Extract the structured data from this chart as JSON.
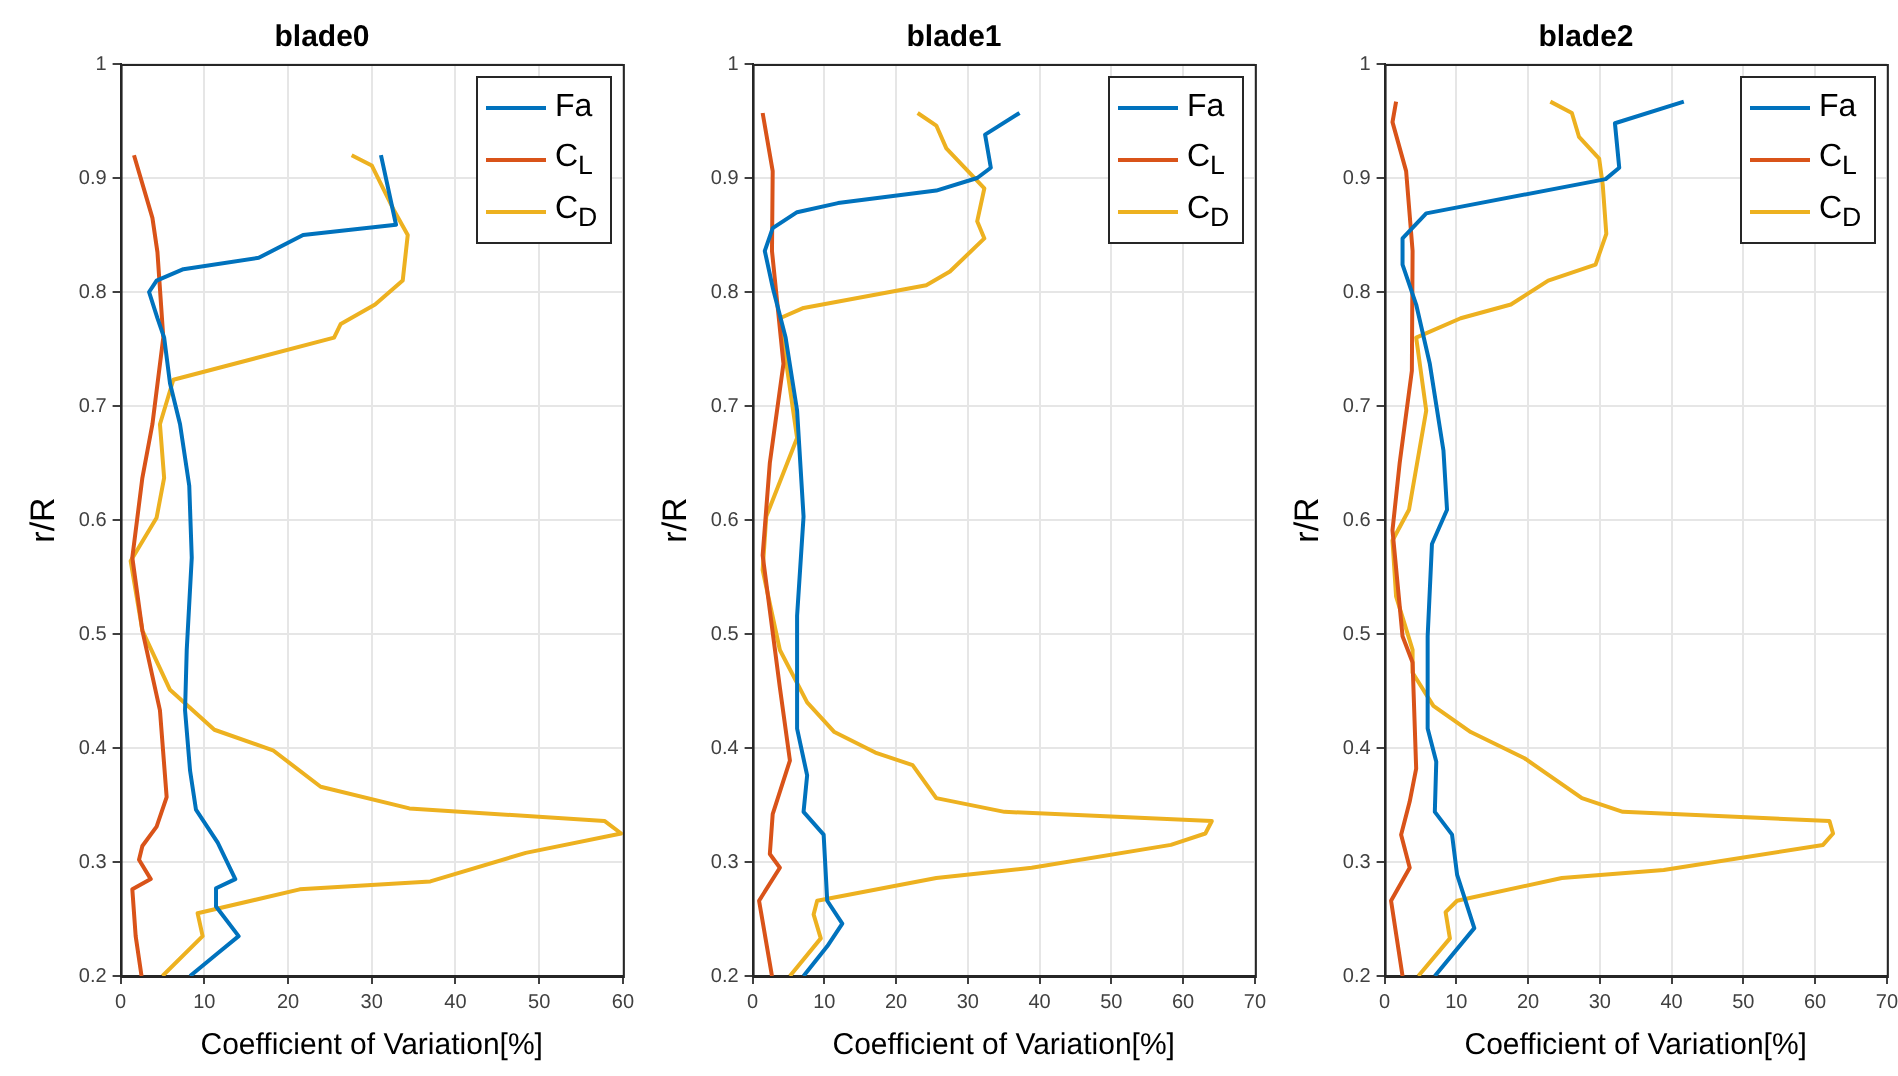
{
  "chart_data": [
    {
      "type": "line",
      "title": "blade0",
      "xlabel": "Coefficient of Variation[%]",
      "ylabel": "r/R",
      "xlim": [
        0,
        60
      ],
      "xticks": [
        0,
        10,
        20,
        30,
        40,
        50,
        60
      ],
      "ylim": [
        0.2,
        1
      ],
      "yticks": [
        0.2,
        0.3,
        0.4,
        0.5,
        0.6,
        0.7,
        0.8,
        0.9,
        1
      ],
      "grid": true,
      "legend": "top right",
      "line_style": "solid",
      "marker": "none",
      "series": [
        {
          "name": "Fa",
          "color": "#0072bd",
          "x": [
            31.1,
            32.9,
            21.8,
            16.5,
            7.5,
            4.3,
            3.4,
            4.4,
            5.2,
            5.9,
            7.1,
            8.2,
            8.5,
            7.9,
            7.7,
            8.3,
            9.0,
            11.6,
            13.7,
            11.4,
            11.4,
            14.1,
            11.6,
            8.3
          ],
          "values": [
            0.92,
            0.859,
            0.85,
            0.83,
            0.82,
            0.81,
            0.8,
            0.777,
            0.76,
            0.72,
            0.684,
            0.63,
            0.567,
            0.486,
            0.433,
            0.38,
            0.346,
            0.317,
            0.285,
            0.277,
            0.261,
            0.235,
            0.22,
            0.2
          ]
        },
        {
          "name": "C$_{L}$",
          "color": "#d95319",
          "x": [
            1.6,
            3.8,
            4.4,
            5.1,
            3.8,
            2.6,
            1.4,
            2.6,
            4.7,
            5.5,
            4.3,
            2.6,
            2.2,
            3.6,
            1.4,
            1.8,
            2.5
          ],
          "values": [
            0.92,
            0.865,
            0.835,
            0.76,
            0.684,
            0.637,
            0.567,
            0.503,
            0.433,
            0.357,
            0.331,
            0.314,
            0.302,
            0.285,
            0.276,
            0.235,
            0.2
          ]
        },
        {
          "name": "C$_{D}$",
          "color": "#edb120",
          "x": [
            27.6,
            30,
            32.7,
            34.3,
            33.7,
            30.4,
            26.3,
            25.5,
            6.3,
            4.7,
            5.2,
            4.3,
            1.2,
            2.6,
            5.9,
            11.2,
            18.2,
            23.9,
            34.5,
            57.8,
            59.8,
            48.4,
            37,
            21.4,
            9.2,
            9.8,
            5
          ],
          "values": [
            0.92,
            0.911,
            0.871,
            0.85,
            0.81,
            0.789,
            0.772,
            0.76,
            0.723,
            0.684,
            0.637,
            0.602,
            0.564,
            0.503,
            0.451,
            0.416,
            0.398,
            0.366,
            0.347,
            0.336,
            0.325,
            0.308,
            0.283,
            0.276,
            0.255,
            0.235,
            0.2
          ]
        }
      ]
    },
    {
      "type": "line",
      "title": "blade1",
      "xlabel": "Coefficient of Variation[%]",
      "ylabel": "r/R",
      "xlim": [
        0,
        70
      ],
      "xticks": [
        0,
        10,
        20,
        30,
        40,
        50,
        60,
        70
      ],
      "ylim": [
        0.2,
        1
      ],
      "yticks": [
        0.2,
        0.3,
        0.4,
        0.5,
        0.6,
        0.7,
        0.8,
        0.9,
        1
      ],
      "grid": true,
      "legend": "top right",
      "line_style": "solid",
      "marker": "none",
      "series": [
        {
          "name": "Fa",
          "color": "#0072bd",
          "x": [
            37.2,
            32.4,
            33.2,
            31.3,
            25.6,
            11.9,
            6.2,
            2.8,
            1.7,
            2.8,
            4.6,
            6.2,
            7.1,
            6.2,
            6.2,
            7.6,
            7.1,
            9.9,
            10.4,
            12.5,
            10.4,
            7.1
          ],
          "values": [
            0.957,
            0.938,
            0.909,
            0.9,
            0.889,
            0.878,
            0.87,
            0.856,
            0.836,
            0.804,
            0.76,
            0.696,
            0.603,
            0.516,
            0.417,
            0.376,
            0.344,
            0.324,
            0.266,
            0.246,
            0.226,
            0.2
          ]
        },
        {
          "name": "C$_{L}$",
          "color": "#d95319",
          "x": [
            1.4,
            2.8,
            2.7,
            4.3,
            2.4,
            1.4,
            3.8,
            5.2,
            2.8,
            2.4,
            3.8,
            0.9,
            2.7
          ],
          "values": [
            0.957,
            0.906,
            0.836,
            0.737,
            0.65,
            0.569,
            0.453,
            0.389,
            0.342,
            0.307,
            0.295,
            0.266,
            0.2
          ]
        },
        {
          "name": "C$_{D}$",
          "color": "#edb120",
          "x": [
            23,
            25.6,
            27,
            32.3,
            31.3,
            32.3,
            27.5,
            24.2,
            7.1,
            3.8,
            6.2,
            1.9,
            1.4,
            3.8,
            7.6,
            11.4,
            17.1,
            22.3,
            25.6,
            35.1,
            64,
            63.1,
            58.3,
            38.9,
            25.6,
            9,
            8.5,
            9.5,
            5.2
          ],
          "values": [
            0.957,
            0.946,
            0.926,
            0.891,
            0.862,
            0.847,
            0.818,
            0.806,
            0.786,
            0.777,
            0.672,
            0.603,
            0.556,
            0.486,
            0.44,
            0.414,
            0.396,
            0.385,
            0.356,
            0.344,
            0.336,
            0.325,
            0.315,
            0.295,
            0.286,
            0.266,
            0.254,
            0.233,
            0.2
          ]
        }
      ]
    },
    {
      "type": "line",
      "title": "blade2",
      "xlabel": "Coefficient of Variation[%]",
      "ylabel": "r/R",
      "xlim": [
        0,
        70
      ],
      "xticks": [
        0,
        10,
        20,
        30,
        40,
        50,
        60,
        70
      ],
      "ylim": [
        0.2,
        1
      ],
      "yticks": [
        0.2,
        0.3,
        0.4,
        0.5,
        0.6,
        0.7,
        0.8,
        0.9,
        1
      ],
      "grid": true,
      "legend": "top right",
      "line_style": "solid",
      "marker": "none",
      "series": [
        {
          "name": "Fa",
          "color": "#0072bd",
          "x": [
            41.7,
            32.1,
            32.7,
            30.8,
            5.8,
            2.5,
            2.5,
            4.4,
            6.3,
            8.2,
            8.7,
            6.6,
            6,
            6,
            7.2,
            7,
            9.4,
            10.1,
            12.5,
            7
          ],
          "values": [
            0.967,
            0.948,
            0.909,
            0.899,
            0.869,
            0.847,
            0.824,
            0.789,
            0.737,
            0.661,
            0.609,
            0.579,
            0.498,
            0.417,
            0.388,
            0.344,
            0.324,
            0.289,
            0.242,
            0.2
          ]
        },
        {
          "name": "C$_{L}$",
          "color": "#d95319",
          "x": [
            1.6,
            1.1,
            3,
            3.9,
            3.8,
            2.1,
            1.1,
            2.5,
            3.9,
            4.4,
            3.5,
            2.3,
            3.5,
            0.9,
            2.5
          ],
          "values": [
            0.967,
            0.949,
            0.906,
            0.836,
            0.731,
            0.65,
            0.591,
            0.498,
            0.475,
            0.382,
            0.353,
            0.324,
            0.295,
            0.266,
            0.2
          ]
        },
        {
          "name": "C$_{D}$",
          "color": "#edb120",
          "x": [
            23.1,
            26.1,
            27.1,
            29.9,
            30.4,
            30.9,
            29.4,
            22.8,
            17.6,
            10.6,
            4.4,
            5.8,
            3.4,
            1.1,
            1.6,
            3.9,
            3.9,
            6.8,
            12,
            19.5,
            27.5,
            33.2,
            62,
            62.5,
            61.1,
            38.9,
            24.7,
            10.1,
            8.5,
            9.1,
            4.7
          ],
          "values": [
            0.967,
            0.957,
            0.936,
            0.917,
            0.894,
            0.851,
            0.824,
            0.81,
            0.789,
            0.777,
            0.76,
            0.696,
            0.609,
            0.582,
            0.533,
            0.486,
            0.466,
            0.437,
            0.414,
            0.391,
            0.356,
            0.344,
            0.336,
            0.325,
            0.315,
            0.293,
            0.286,
            0.266,
            0.256,
            0.233,
            0.2
          ]
        }
      ]
    }
  ]
}
